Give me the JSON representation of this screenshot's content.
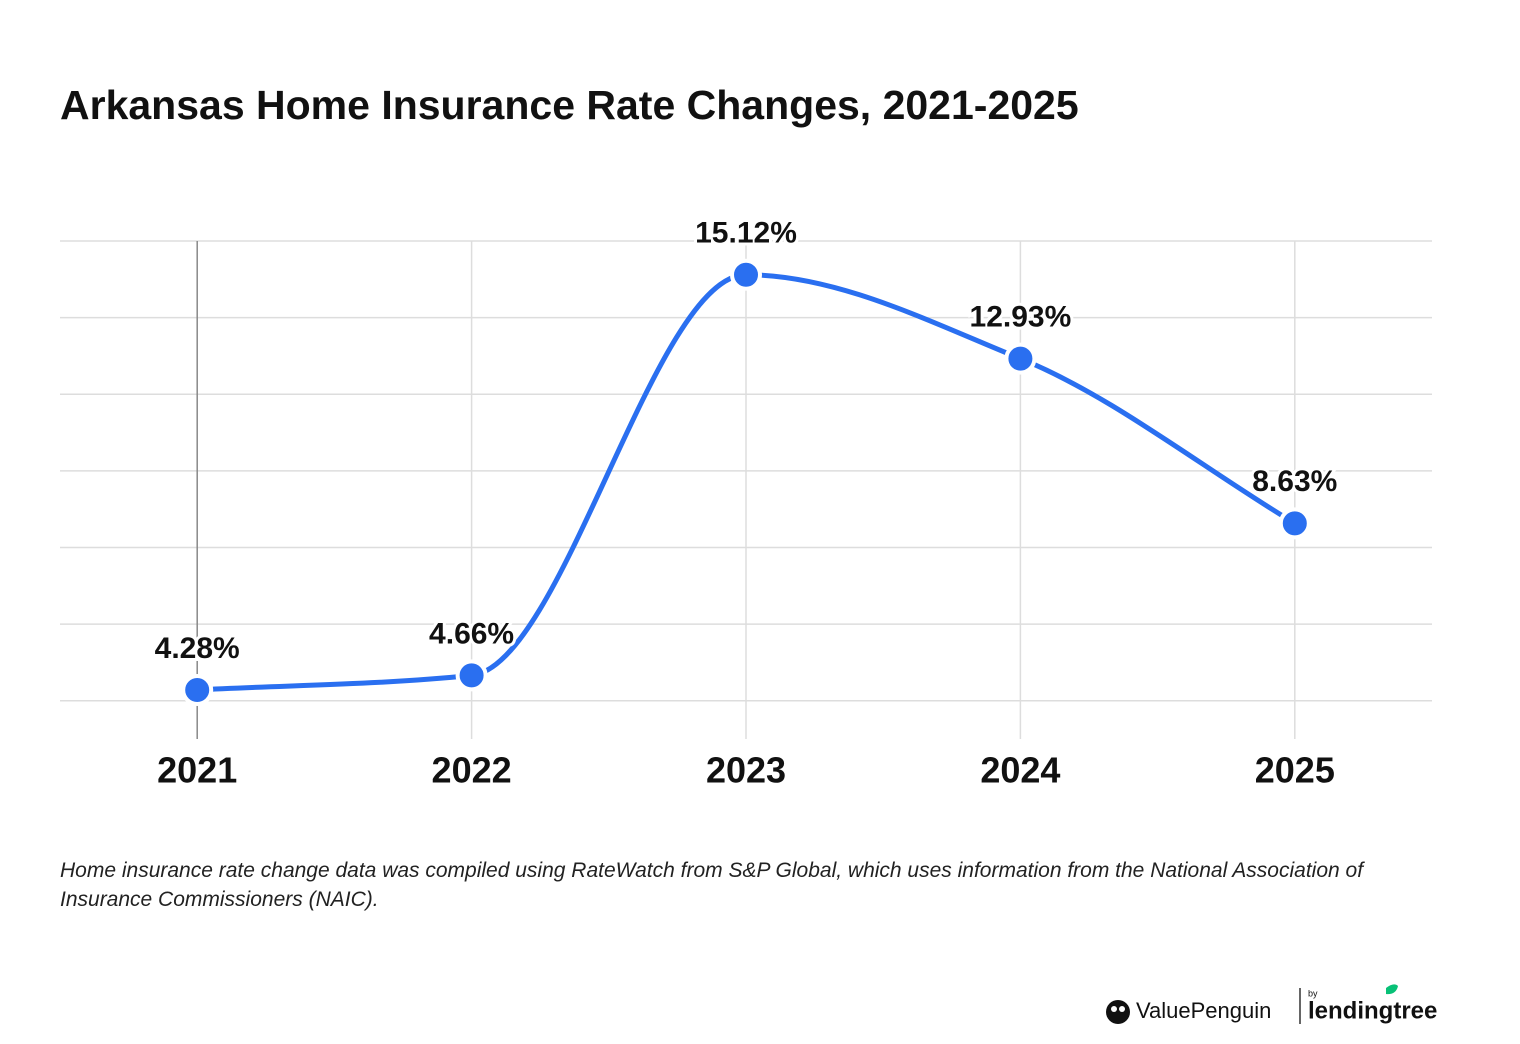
{
  "chart_data": {
    "type": "line",
    "title": "Arkansas Home Insurance Rate Changes, 2021-2025",
    "categories": [
      "2021",
      "2022",
      "2023",
      "2024",
      "2025"
    ],
    "values": [
      4.28,
      4.66,
      15.12,
      12.93,
      8.63
    ],
    "value_labels": [
      "4.28%",
      "4.66%",
      "15.12%",
      "12.93%",
      "8.63%"
    ],
    "color": "#2a6ff0",
    "ylim": [
      3,
      16
    ],
    "yticks": [
      4,
      6,
      8,
      10,
      12,
      14,
      16
    ],
    "ytick_labels": false,
    "grid": true,
    "smooth": true,
    "note": "Home insurance rate change data was compiled using RateWatch from S&P Global, which uses information from the National Association of Insurance Commissioners (NAIC).",
    "brand": {
      "name": "ValuePenguin",
      "by": "by",
      "partner": "lendingtree"
    }
  }
}
